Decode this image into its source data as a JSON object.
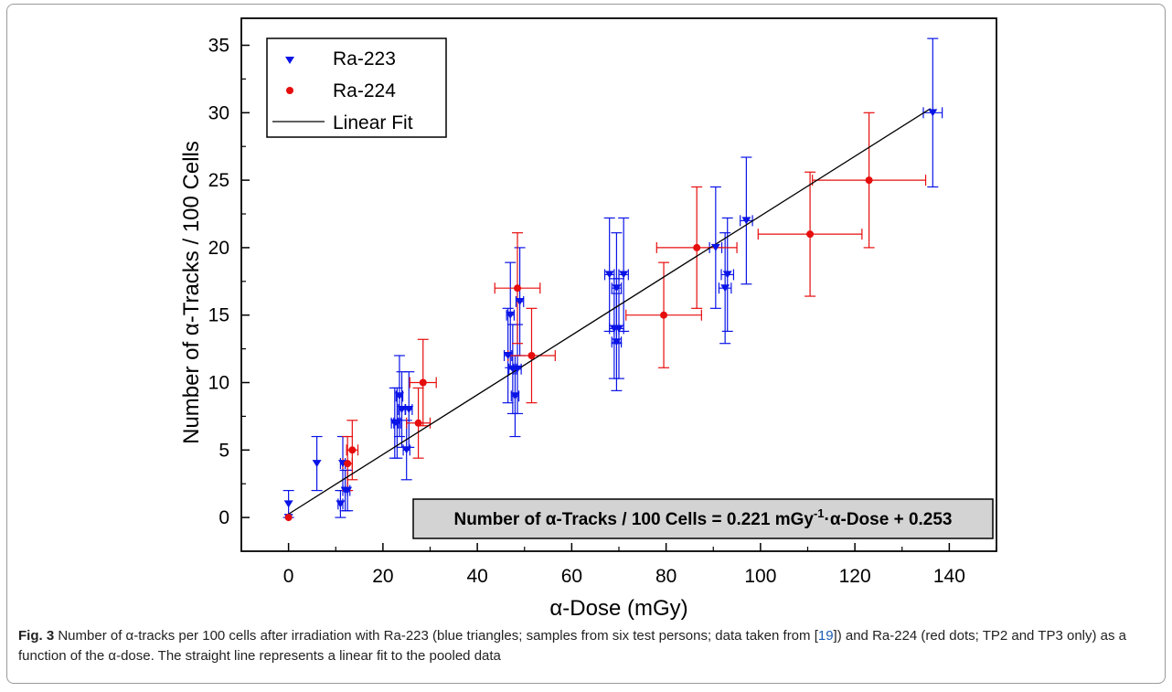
{
  "figure": {
    "label": "Fig. 3",
    "caption_part1": " Number of α-tracks per 100 cells after irradiation with Ra-223 (blue triangles; samples from six test persons; data taken from [",
    "caption_ref": "19",
    "caption_part2": "]) and Ra-224 (red dots; TP2 and TP3 only) as a function of the α-dose. The straight line represents a linear fit to the pooled data"
  },
  "chart_data": {
    "type": "scatter",
    "xlabel": "α-Dose (mGy)",
    "ylabel": "Number of α-Tracks / 100 Cells",
    "xlim": [
      -10,
      150
    ],
    "ylim": [
      -2.5,
      37
    ],
    "xticks": [
      0,
      20,
      40,
      60,
      80,
      100,
      120,
      140
    ],
    "yticks": [
      0,
      5,
      10,
      15,
      20,
      25,
      30,
      35
    ],
    "grid": false,
    "legend_position": "top-left",
    "colors": {
      "ra223": "#0a14e6",
      "ra224": "#e60d0d",
      "fit": "#000000"
    },
    "fit": {
      "name": "Linear Fit",
      "slope": 0.221,
      "intercept": 0.253,
      "x_range": [
        0,
        136
      ]
    },
    "annotation": {
      "prefix": "Number of α-Tracks / 100 Cells = 0.221 mGy",
      "superscript": "-1",
      "suffix": "·α-Dose + 0.253"
    },
    "series": [
      {
        "name": "Ra-223",
        "marker": "triangle-down",
        "points": [
          {
            "x": 0,
            "y": 0,
            "xerr": 0,
            "yerr": 0
          },
          {
            "x": 0,
            "y": 1,
            "xerr": 0,
            "yerr": 1
          },
          {
            "x": 6,
            "y": 4,
            "xerr": 0,
            "yerr": 2
          },
          {
            "x": 11,
            "y": 1,
            "xerr": 0.5,
            "yerr": 1
          },
          {
            "x": 11.5,
            "y": 4,
            "xerr": 0.5,
            "yerr": 2
          },
          {
            "x": 12,
            "y": 2,
            "xerr": 0.5,
            "yerr": 1.5
          },
          {
            "x": 12.5,
            "y": 2,
            "xerr": 0.5,
            "yerr": 1.5
          },
          {
            "x": 22.5,
            "y": 7,
            "xerr": 0.7,
            "yerr": 2.6
          },
          {
            "x": 23,
            "y": 7,
            "xerr": 0.7,
            "yerr": 2.6
          },
          {
            "x": 23.5,
            "y": 9,
            "xerr": 0.7,
            "yerr": 3
          },
          {
            "x": 24,
            "y": 8,
            "xerr": 0.7,
            "yerr": 2.8
          },
          {
            "x": 25,
            "y": 5,
            "xerr": 0.7,
            "yerr": 2.2
          },
          {
            "x": 25.5,
            "y": 8,
            "xerr": 0.7,
            "yerr": 2.8
          },
          {
            "x": 46.5,
            "y": 12,
            "xerr": 0.8,
            "yerr": 3.5
          },
          {
            "x": 47,
            "y": 15,
            "xerr": 0.8,
            "yerr": 3.9
          },
          {
            "x": 47.5,
            "y": 11,
            "xerr": 0.8,
            "yerr": 3.3
          },
          {
            "x": 48,
            "y": 9,
            "xerr": 0.8,
            "yerr": 3
          },
          {
            "x": 48.5,
            "y": 11,
            "xerr": 0.8,
            "yerr": 3.3
          },
          {
            "x": 49,
            "y": 16,
            "xerr": 0.8,
            "yerr": 4
          },
          {
            "x": 68,
            "y": 18,
            "xerr": 1,
            "yerr": 4.2
          },
          {
            "x": 69,
            "y": 14,
            "xerr": 1,
            "yerr": 3.7
          },
          {
            "x": 69.5,
            "y": 17,
            "xerr": 1,
            "yerr": 4.1
          },
          {
            "x": 69.5,
            "y": 13,
            "xerr": 1,
            "yerr": 3.6
          },
          {
            "x": 70,
            "y": 14,
            "xerr": 1,
            "yerr": 3.7
          },
          {
            "x": 71,
            "y": 18,
            "xerr": 1,
            "yerr": 4.2
          },
          {
            "x": 90.5,
            "y": 20,
            "xerr": 1.3,
            "yerr": 4.5
          },
          {
            "x": 92.5,
            "y": 17,
            "xerr": 1.3,
            "yerr": 4.1
          },
          {
            "x": 93,
            "y": 18,
            "xerr": 1.3,
            "yerr": 4.2
          },
          {
            "x": 97,
            "y": 22,
            "xerr": 1.3,
            "yerr": 4.7
          },
          {
            "x": 136.5,
            "y": 30,
            "xerr": 2,
            "yerr": 5.5
          }
        ]
      },
      {
        "name": "Ra-224",
        "marker": "circle",
        "points": [
          {
            "x": 0,
            "y": 0,
            "xerr": 0,
            "yerr": 0
          },
          {
            "x": 12.5,
            "y": 4,
            "xerr": 1,
            "yerr": 2
          },
          {
            "x": 13.5,
            "y": 5,
            "xerr": 1.2,
            "yerr": 2.2
          },
          {
            "x": 27.5,
            "y": 7,
            "xerr": 2.5,
            "yerr": 2.6
          },
          {
            "x": 28.5,
            "y": 10,
            "xerr": 2.8,
            "yerr": 3.2
          },
          {
            "x": 48.5,
            "y": 17,
            "xerr": 4.8,
            "yerr": 4.1
          },
          {
            "x": 51.5,
            "y": 12,
            "xerr": 5,
            "yerr": 3.5
          },
          {
            "x": 79.5,
            "y": 15,
            "xerr": 8,
            "yerr": 3.9
          },
          {
            "x": 86.5,
            "y": 20,
            "xerr": 8.5,
            "yerr": 4.5
          },
          {
            "x": 110.5,
            "y": 21,
            "xerr": 11,
            "yerr": 4.6
          },
          {
            "x": 123,
            "y": 25,
            "xerr": 12,
            "yerr": 5
          }
        ]
      }
    ]
  }
}
